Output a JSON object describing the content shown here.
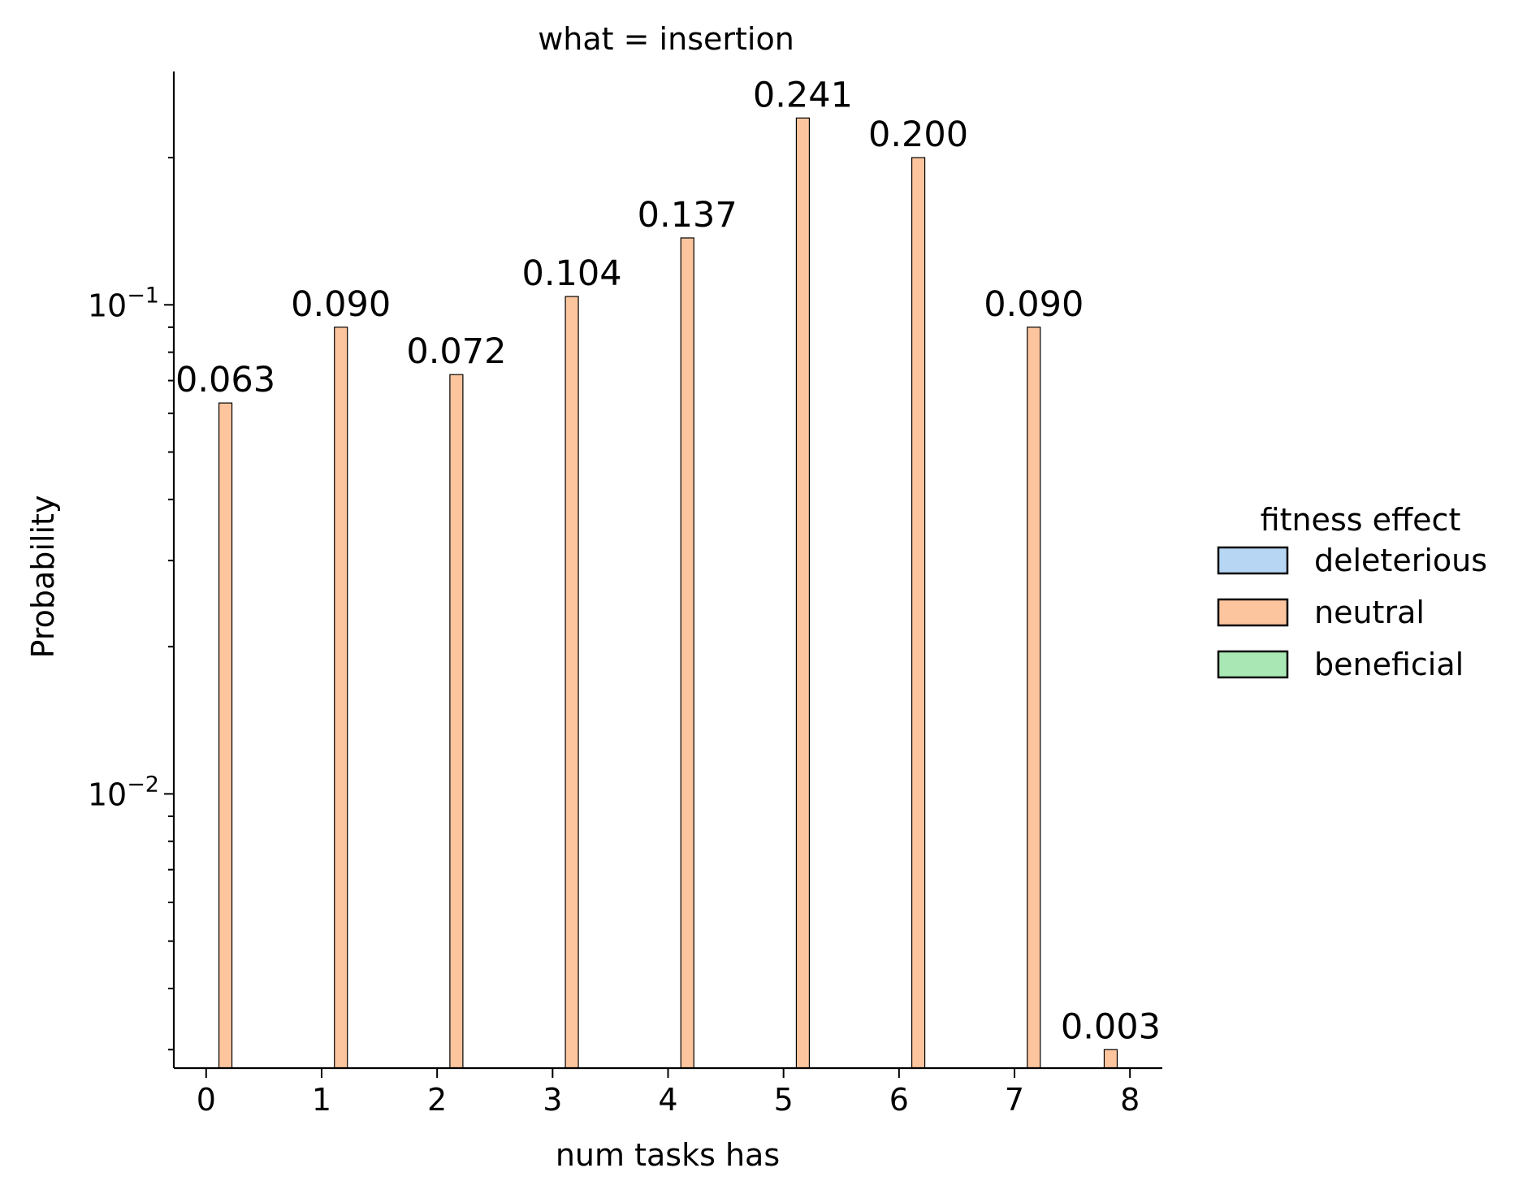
{
  "chart_data": {
    "type": "bar",
    "title": "what = insertion",
    "xlabel": "num tasks has",
    "ylabel": "Probability",
    "yscale": "log",
    "ylim": [
      0.00275,
      0.3
    ],
    "xlim": [
      -0.28,
      8.28
    ],
    "x_ticks": [
      {
        "value": 0,
        "label": "0"
      },
      {
        "value": 1,
        "label": "1"
      },
      {
        "value": 2,
        "label": "2"
      },
      {
        "value": 3,
        "label": "3"
      },
      {
        "value": 4,
        "label": "4"
      },
      {
        "value": 5,
        "label": "5"
      },
      {
        "value": 6,
        "label": "6"
      },
      {
        "value": 7,
        "label": "7"
      },
      {
        "value": 8,
        "label": "8"
      }
    ],
    "y_major_ticks": [
      {
        "value": 0.01,
        "base": "10",
        "exponent": "−2"
      },
      {
        "value": 0.1,
        "base": "10",
        "exponent": "−1"
      }
    ],
    "grid": false,
    "legend": {
      "title": "fitness effect",
      "placement": "right",
      "entries": [
        {
          "label": "deleterious",
          "color": "#b7d6f4"
        },
        {
          "label": "neutral",
          "color": "#fdc59e"
        },
        {
          "label": "beneficial",
          "color": "#a9e8b4"
        }
      ]
    },
    "series": [
      {
        "name": "neutral",
        "color": "#fdc59e",
        "bars": [
          {
            "x": 0.167,
            "value": 0.063,
            "label": "0.063"
          },
          {
            "x": 1.167,
            "value": 0.09,
            "label": "0.090"
          },
          {
            "x": 2.167,
            "value": 0.072,
            "label": "0.072"
          },
          {
            "x": 3.167,
            "value": 0.104,
            "label": "0.104"
          },
          {
            "x": 4.167,
            "value": 0.137,
            "label": "0.137"
          },
          {
            "x": 5.167,
            "value": 0.241,
            "label": "0.241"
          },
          {
            "x": 6.167,
            "value": 0.2,
            "label": "0.200"
          },
          {
            "x": 7.167,
            "value": 0.09,
            "label": "0.090"
          },
          {
            "x": 7.833,
            "value": 0.003,
            "label": "0.003"
          }
        ]
      }
    ]
  }
}
